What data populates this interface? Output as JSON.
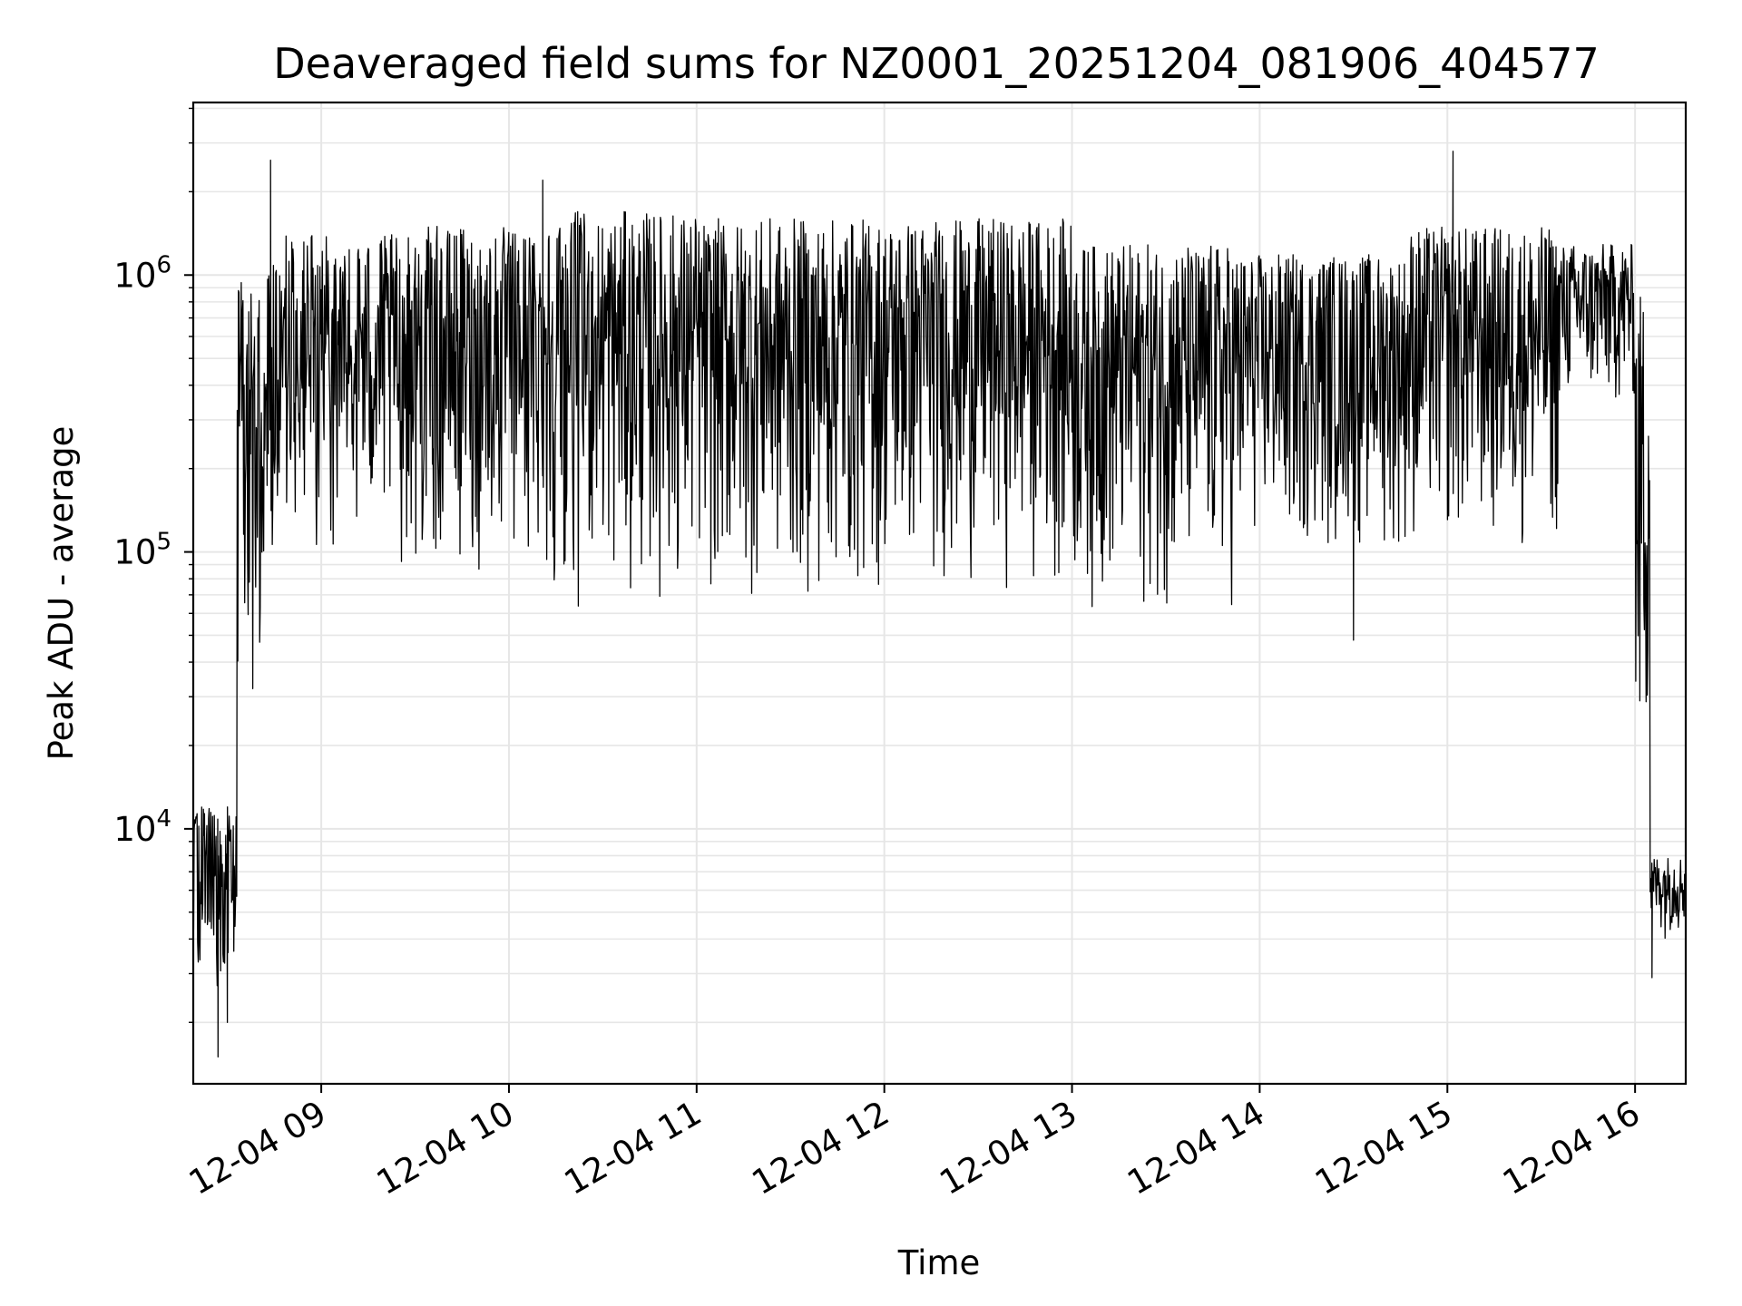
{
  "chart_data": {
    "type": "line",
    "title": "Deaveraged field sums for NZ0001_20251204_081906_404577",
    "xlabel": "Time",
    "ylabel": "Peak ADU - average",
    "yscale": "log",
    "x_units": "hours on 2025-12-04",
    "xlim": [
      8.318,
      16.27
    ],
    "ylim": [
      1200,
      4200000
    ],
    "grid": true,
    "x_ticks": [
      {
        "value": 9,
        "label": "12-04 09"
      },
      {
        "value": 10,
        "label": "12-04 10"
      },
      {
        "value": 11,
        "label": "12-04 11"
      },
      {
        "value": 12,
        "label": "12-04 12"
      },
      {
        "value": 13,
        "label": "12-04 13"
      },
      {
        "value": 14,
        "label": "12-04 14"
      },
      {
        "value": 15,
        "label": "12-04 15"
      },
      {
        "value": 16,
        "label": "12-04 16"
      }
    ],
    "y_ticks": [
      {
        "value": 10000,
        "base": "10",
        "exp": "4"
      },
      {
        "value": 100000,
        "base": "10",
        "exp": "5"
      },
      {
        "value": 1000000,
        "base": "10",
        "exp": "6"
      }
    ],
    "series": [
      {
        "name": "Peak ADU - average",
        "color": "#000000",
        "description": "dense noisy time series; envelope per segment",
        "segments": [
          {
            "x_start": 8.32,
            "x_end": 8.55,
            "low": 2500,
            "high": 12000
          },
          {
            "x_start": 8.55,
            "x_end": 8.7,
            "low": 20000,
            "high": 1000000
          },
          {
            "x_start": 8.7,
            "x_end": 9.5,
            "low": 80000,
            "high": 1400000
          },
          {
            "x_start": 9.5,
            "x_end": 10.2,
            "low": 70000,
            "high": 1500000
          },
          {
            "x_start": 10.2,
            "x_end": 11.0,
            "low": 60000,
            "high": 1700000
          },
          {
            "x_start": 11.0,
            "x_end": 12.0,
            "low": 60000,
            "high": 1600000
          },
          {
            "x_start": 12.0,
            "x_end": 13.0,
            "low": 70000,
            "high": 1600000
          },
          {
            "x_start": 13.0,
            "x_end": 13.9,
            "low": 55000,
            "high": 1300000
          },
          {
            "x_start": 13.9,
            "x_end": 14.8,
            "low": 90000,
            "high": 1200000
          },
          {
            "x_start": 14.8,
            "x_end": 15.6,
            "low": 90000,
            "high": 1500000
          },
          {
            "x_start": 15.6,
            "x_end": 16.0,
            "low": 300000,
            "high": 1300000
          },
          {
            "x_start": 16.0,
            "x_end": 16.08,
            "low": 10000,
            "high": 900000
          },
          {
            "x_start": 16.08,
            "x_end": 16.27,
            "low": 4000,
            "high": 8000
          }
        ],
        "peaks": [
          {
            "x": 8.73,
            "y": 2600000
          },
          {
            "x": 10.18,
            "y": 2200000
          },
          {
            "x": 15.03,
            "y": 2800000
          }
        ],
        "dips": [
          {
            "x": 8.45,
            "y": 1500
          },
          {
            "x": 8.5,
            "y": 2000
          },
          {
            "x": 14.5,
            "y": 48000
          },
          {
            "x": 16.09,
            "y": 2900
          },
          {
            "x": 16.27,
            "y": 3200
          }
        ]
      }
    ]
  }
}
